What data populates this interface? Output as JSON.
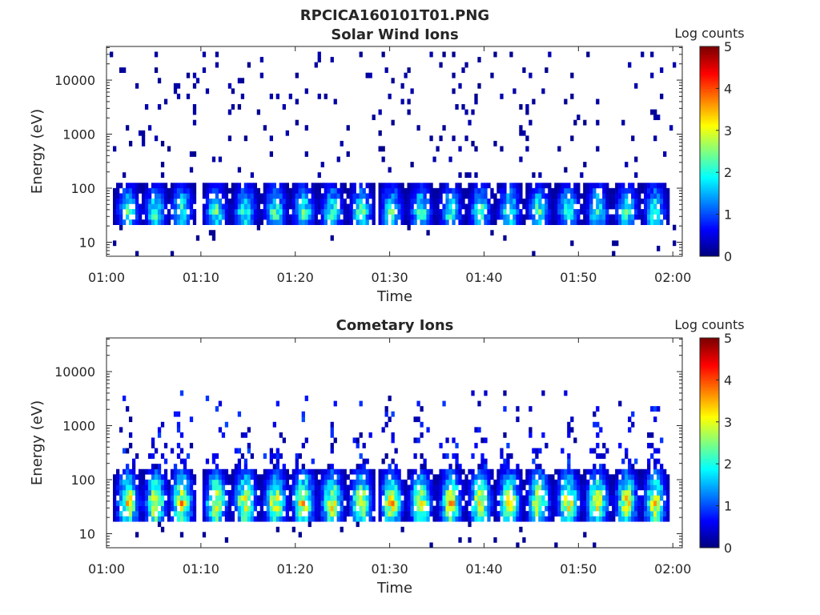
{
  "figure": {
    "title": "RPCICA160101T01.PNG"
  },
  "chart_data": [
    {
      "type": "heatmap",
      "title": "Solar Wind Ions",
      "xlabel": "Time",
      "ylabel": "Energy (eV)",
      "x_ticks": [
        "01:00",
        "01:10",
        "01:20",
        "01:30",
        "01:40",
        "01:50",
        "02:00"
      ],
      "x_range": [
        "01:00",
        "02:01"
      ],
      "y_scale": "log",
      "y_ticks": [
        "10",
        "100",
        "1000",
        "10000"
      ],
      "y_range": [
        5.5,
        42000
      ],
      "colorbar": {
        "label": "Log counts",
        "ticks": [
          "0",
          "1",
          "2",
          "3",
          "4",
          "5"
        ],
        "range": [
          0,
          5
        ],
        "colormap": "jet"
      },
      "pulse_centers_min": [
        2.3,
        5.2,
        8.0,
        11.6,
        14.7,
        17.9,
        20.9,
        23.9,
        27.0,
        30.2,
        33.3,
        36.5,
        39.6,
        42.7,
        45.8,
        48.9,
        52.0,
        55.1,
        58.1
      ],
      "pulse_energy_range_eV": [
        20,
        120
      ],
      "pulse_peak_log_counts": 2.6,
      "background": "sparse single counts 1 to 1 log counts from 150 eV to 30000 eV"
    },
    {
      "type": "heatmap",
      "title": "Cometary Ions",
      "xlabel": "Time",
      "ylabel": "Energy (eV)",
      "x_ticks": [
        "01:00",
        "01:10",
        "01:20",
        "01:30",
        "01:40",
        "01:50",
        "02:00"
      ],
      "x_range": [
        "01:00",
        "02:01"
      ],
      "y_scale": "log",
      "y_ticks": [
        "10",
        "100",
        "1000",
        "10000"
      ],
      "y_range": [
        5.5,
        42000
      ],
      "colorbar": {
        "label": "Log counts",
        "ticks": [
          "0",
          "1",
          "2",
          "3",
          "4",
          "5"
        ],
        "range": [
          0,
          5
        ],
        "colormap": "jet"
      },
      "pulse_centers_min": [
        2.3,
        5.2,
        8.0,
        11.6,
        14.7,
        17.9,
        20.9,
        23.9,
        27.0,
        30.2,
        33.3,
        36.5,
        39.6,
        42.7,
        45.8,
        48.9,
        52.0,
        55.1,
        58.1
      ],
      "pulse_energy_range_eV": [
        18,
        150
      ],
      "pulse_peak_log_counts": 3.7,
      "background": "tails of 0 to 1 log counts extending up to about 5000 eV above each pulse"
    }
  ]
}
